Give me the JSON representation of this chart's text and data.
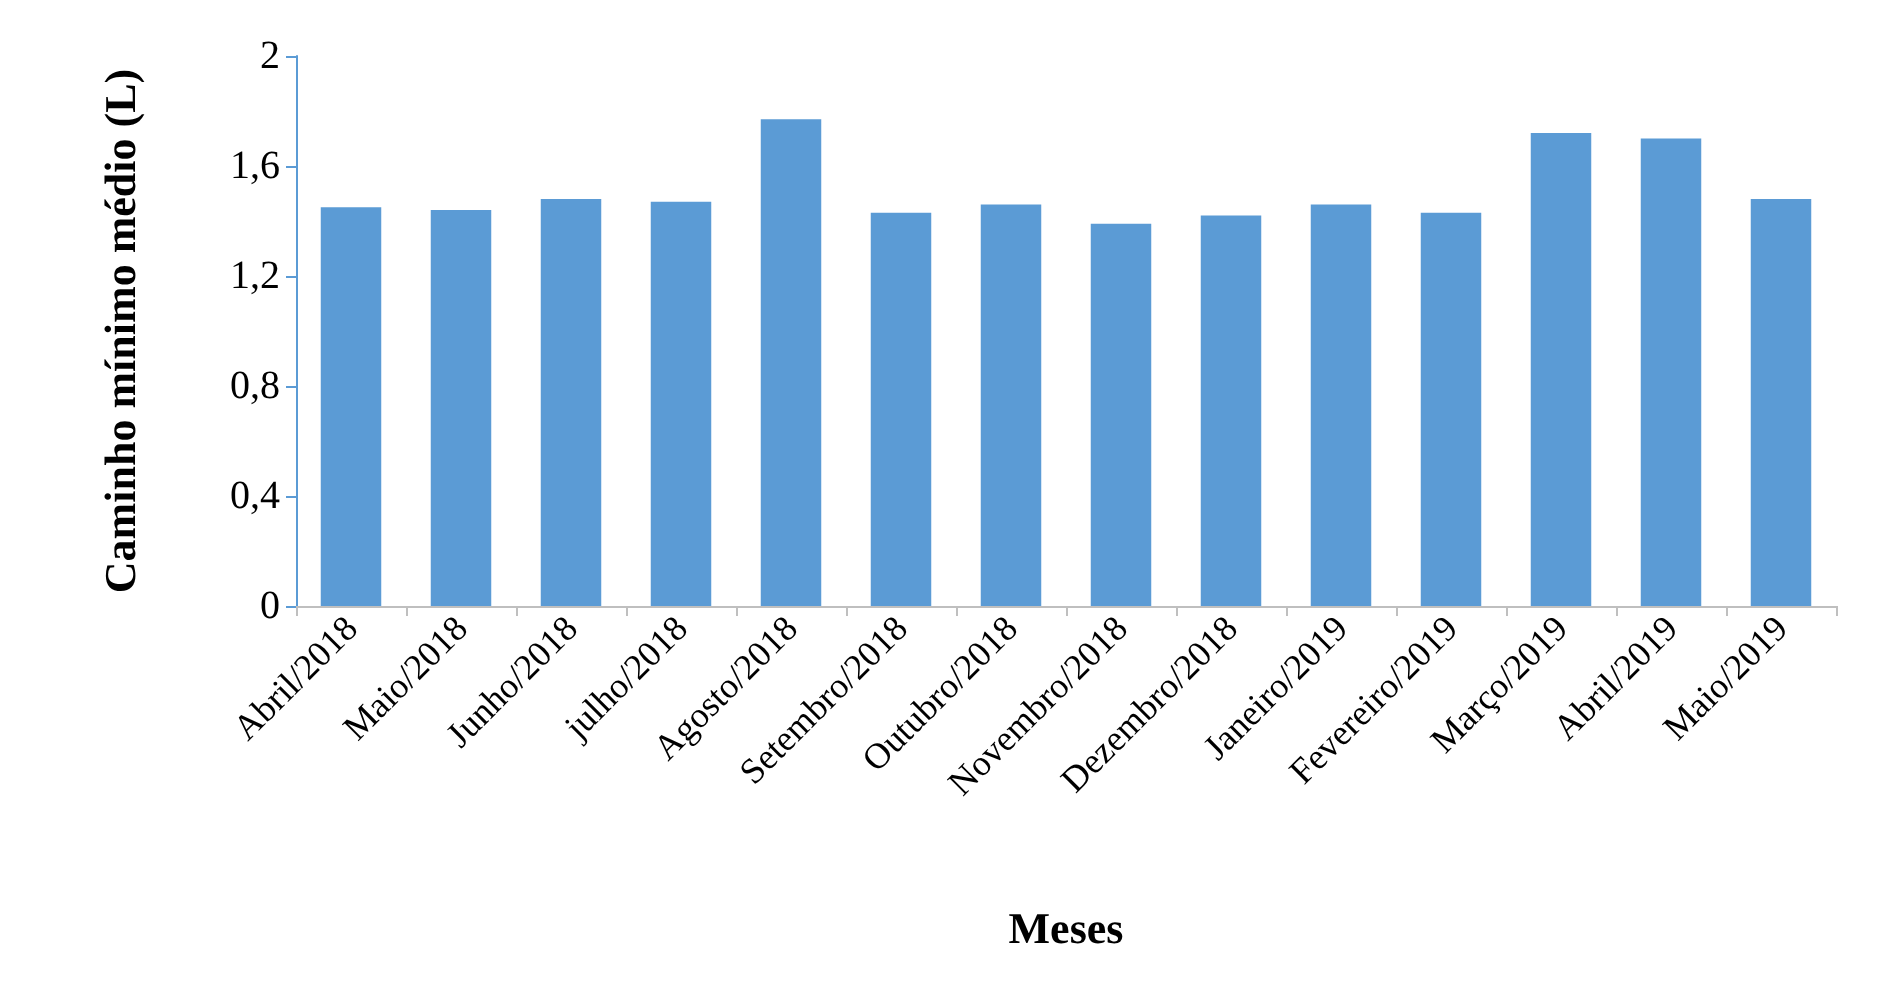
{
  "chart_data": {
    "type": "bar",
    "xlabel": "Meses",
    "ylabel": "Caminho mínimo médio (L)",
    "categories": [
      "Abril/2018",
      "Maio/2018",
      "Junho/2018",
      "julho/2018",
      "Agosto/2018",
      "Setembro/2018",
      "Outubro/2018",
      "Novembro/2018",
      "Dezembro/2018",
      "Janeiro/2019",
      "Fevereiro/2019",
      "Março/2019",
      "Abril/2019",
      "Maio/2019"
    ],
    "values": [
      1.45,
      1.44,
      1.48,
      1.47,
      1.77,
      1.43,
      1.46,
      1.39,
      1.42,
      1.46,
      1.43,
      1.72,
      1.7,
      1.48
    ],
    "color": "#5b9bd5",
    "ylim": [
      0,
      2
    ],
    "yticks": [
      {
        "value": 0,
        "label": "0"
      },
      {
        "value": 0.4,
        "label": "0,4"
      },
      {
        "value": 0.8,
        "label": "0,8"
      },
      {
        "value": 1.2,
        "label": "1,2"
      },
      {
        "value": 1.6,
        "label": "1,6"
      },
      {
        "value": 2,
        "label": "2"
      }
    ],
    "grid": false
  }
}
